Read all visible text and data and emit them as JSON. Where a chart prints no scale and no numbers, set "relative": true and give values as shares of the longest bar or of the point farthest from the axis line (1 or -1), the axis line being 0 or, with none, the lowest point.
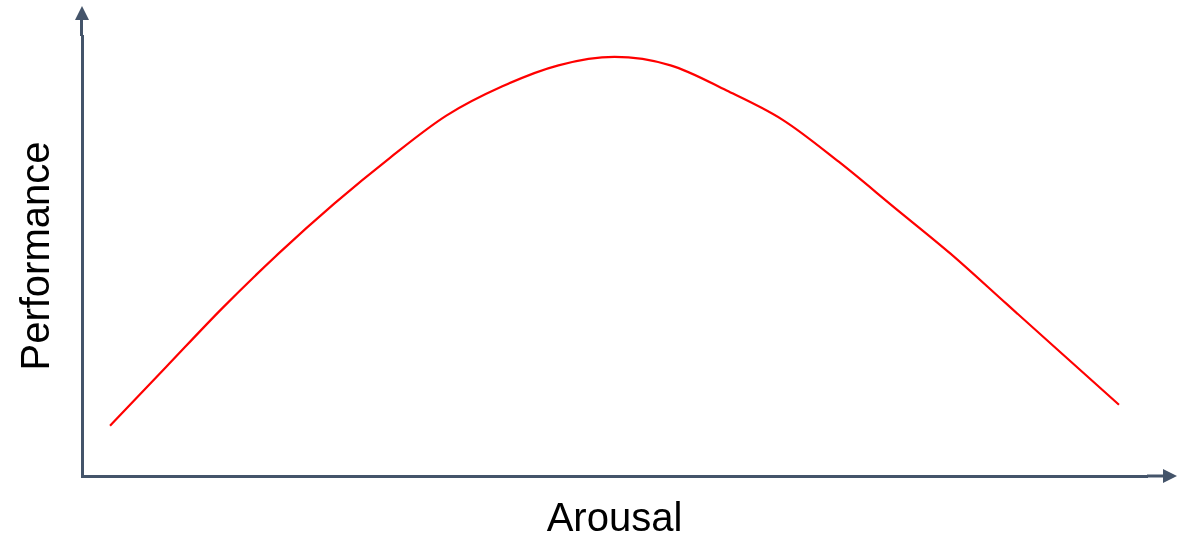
{
  "chart_data": {
    "type": "line",
    "relative": true,
    "xlabel": "Arousal",
    "ylabel": "Performance",
    "color": "#ff0000",
    "marker": "none",
    "grid": false,
    "legend": false,
    "categories": [
      null,
      null,
      null,
      null,
      null,
      null,
      null,
      null,
      null,
      null,
      null,
      null,
      null,
      null,
      null,
      null,
      null,
      null,
      null
    ],
    "values": [
      0.12,
      0.26,
      0.4,
      0.53,
      0.65,
      0.76,
      0.86,
      0.93,
      0.98,
      1.0,
      0.98,
      0.92,
      0.85,
      0.75,
      0.64,
      0.53,
      0.41,
      0.29,
      0.17
    ]
  }
}
